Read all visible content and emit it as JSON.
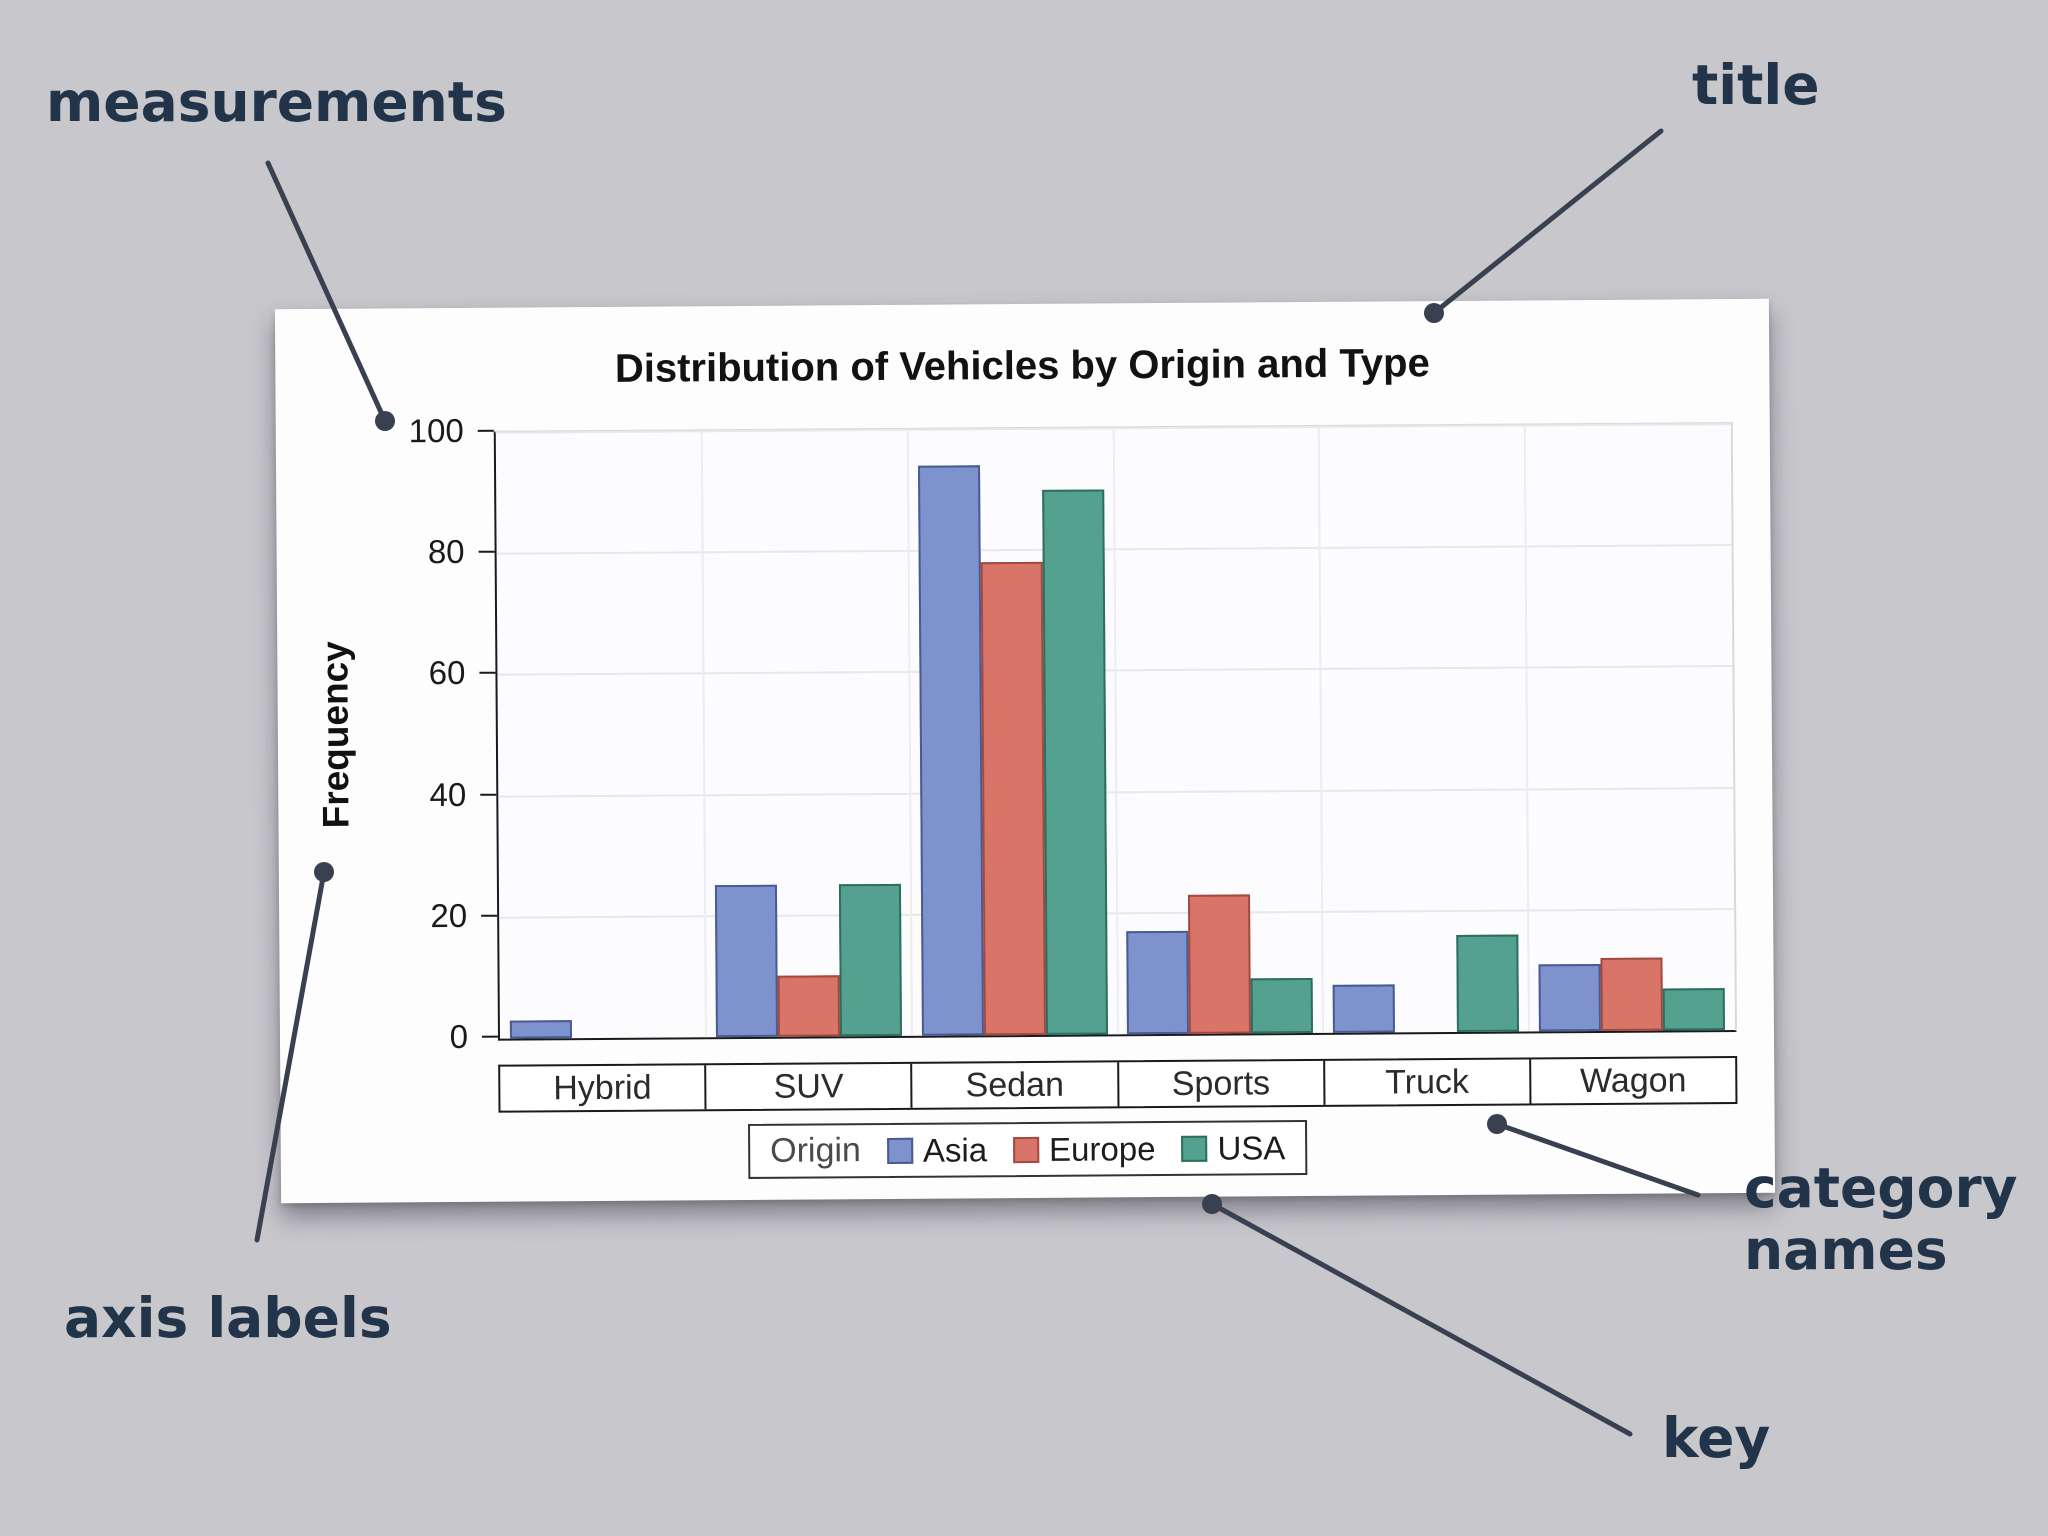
{
  "page": {
    "background": "#c8c7cc",
    "annotation_color": "#213449",
    "line_color": "#39404f"
  },
  "annotations": {
    "measurements": "measurements",
    "title": "title",
    "axis_labels": "axis labels",
    "category_names": "category names",
    "key": "key"
  },
  "chart_data": {
    "type": "bar",
    "title": "Distribution of Vehicles by Origin and Type",
    "xlabel": "",
    "ylabel": "Frequency",
    "ylim": [
      0,
      100
    ],
    "yticks": [
      0,
      20,
      40,
      60,
      80,
      100
    ],
    "grid": true,
    "legend_title": "Origin",
    "legend_position": "bottom",
    "categories": [
      "Hybrid",
      "SUV",
      "Sedan",
      "Sports",
      "Truck",
      "Wagon"
    ],
    "series": [
      {
        "name": "Asia",
        "fill": "#7e92cd",
        "stroke": "#4a5a92",
        "values": [
          3,
          25,
          94,
          17,
          8,
          11
        ]
      },
      {
        "name": "Europe",
        "fill": "#d97568",
        "stroke": "#a34a40",
        "values": [
          0,
          10,
          78,
          23,
          0,
          12
        ]
      },
      {
        "name": "USA",
        "fill": "#55a190",
        "stroke": "#2e6e60",
        "values": [
          0,
          25,
          90,
          9,
          16,
          7
        ]
      }
    ]
  }
}
